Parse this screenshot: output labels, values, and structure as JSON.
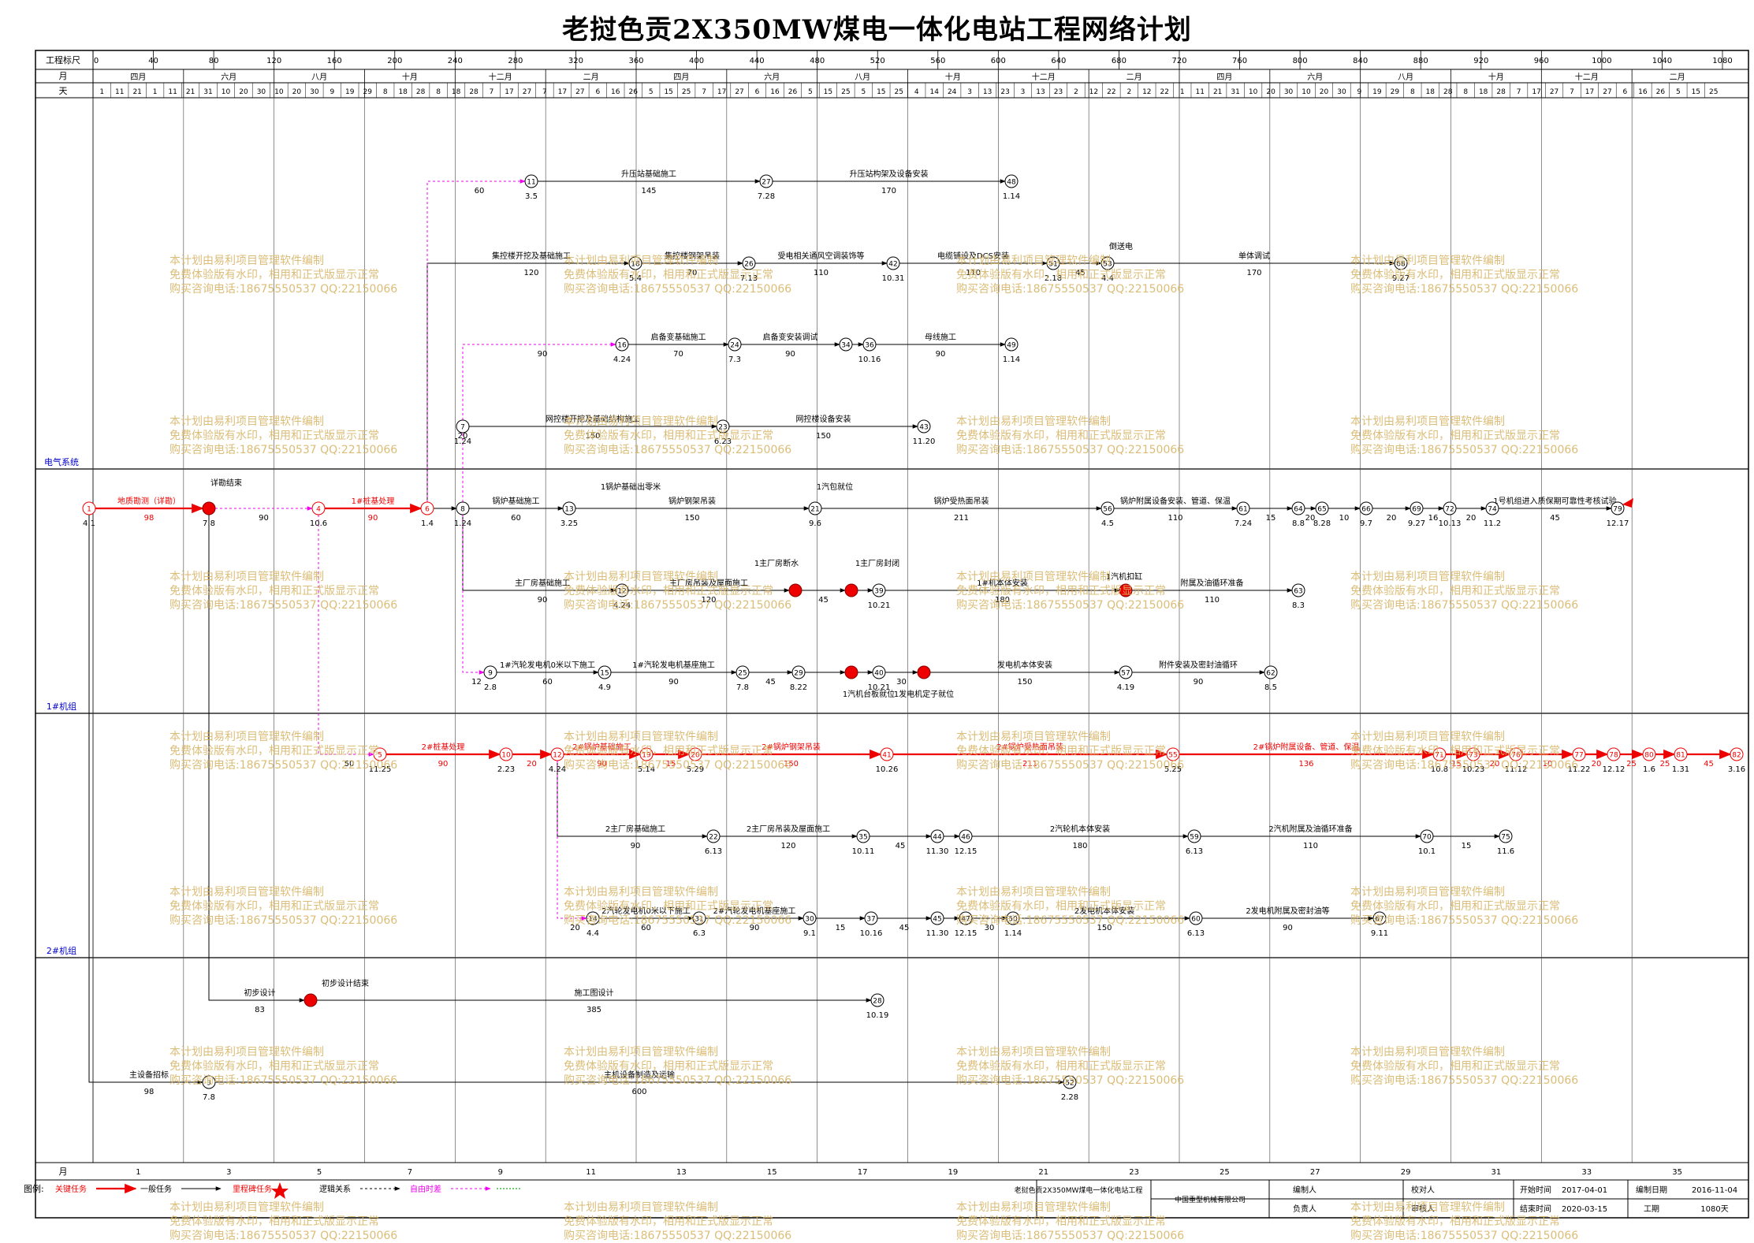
{
  "title": "老挝色贡2X350MW煤电一体化电站工程网络计划",
  "scale": {
    "label_scale": "工程标尺",
    "label_month": "月",
    "label_day": "天",
    "ruler": [
      "0",
      "40",
      "80",
      "120",
      "160",
      "200",
      "240",
      "280",
      "320",
      "360",
      "400",
      "440",
      "480",
      "520",
      "560",
      "600",
      "640",
      "680",
      "720",
      "760",
      "800",
      "840",
      "880",
      "920",
      "960",
      "1000",
      "1040",
      "1080"
    ],
    "months": [
      "四月",
      "六月",
      "八月",
      "十月",
      "十二月",
      "二月",
      "四月",
      "六月",
      "八月",
      "十月",
      "十二月",
      "二月",
      "四月",
      "六月",
      "八月",
      "十月",
      "十二月",
      "二月"
    ]
  },
  "lanes": [
    "电气系统",
    "1#机组",
    "2#机组",
    ""
  ],
  "bottom_months": [
    "月",
    "1",
    "3",
    "5",
    "7",
    "9",
    "11",
    "13",
    "15",
    "17",
    "19",
    "21",
    "23",
    "25",
    "27",
    "29",
    "31",
    "33",
    "35"
  ],
  "watermark": [
    "本计划由易利项目管理软件编制",
    "免费体验版有水印，相用和正式版显示正常",
    "购买咨询电话:18675550537 QQ:22150066"
  ],
  "legend": {
    "label": "图例:",
    "items": [
      "关键任务",
      "一般任务",
      "里程碑任务",
      "逻辑关系",
      "自由时差"
    ]
  },
  "footer": {
    "project": "老挝色贡2X350MW煤电一体化电站工程",
    "company": "中国重型机械有限公司",
    "editor_label": "编制人",
    "checker_label": "校对人",
    "owner_label": "负责人",
    "reviewer_label": "审核人",
    "start_label": "开始时间",
    "start_value": "2017-04-01",
    "end_label": "结束时间",
    "end_value": "2020-03-15",
    "date_label": "编制日期",
    "date_value": "2016-11-04",
    "period_label": "工期",
    "period_value": "1080天"
  },
  "nodes": [
    {
      "id": "1",
      "date": "4.1"
    },
    {
      "id": "2",
      "date": "7.8"
    },
    {
      "id": "4",
      "date": "10.6"
    },
    {
      "id": "6",
      "date": "1.4"
    },
    {
      "id": "8",
      "date": "1.24"
    },
    {
      "id": "13",
      "date": "3.25"
    },
    {
      "id": "21",
      "date": "9.6"
    },
    {
      "id": "56",
      "date": "4.5"
    },
    {
      "id": "61",
      "date": "7.24"
    },
    {
      "id": "64",
      "date": "8.8"
    },
    {
      "id": "65",
      "date": "8.28"
    },
    {
      "id": "66",
      "date": "9.7"
    },
    {
      "id": "69",
      "date": "9.27"
    },
    {
      "id": "72",
      "date": "10.13"
    },
    {
      "id": "74",
      "date": "11.2"
    },
    {
      "id": "79",
      "date": "12.17"
    },
    {
      "id": "11",
      "date": "3.5"
    },
    {
      "id": "27",
      "date": "7.28"
    },
    {
      "id": "48",
      "date": "1.14"
    },
    {
      "id": "18",
      "date": "5.4"
    },
    {
      "id": "26",
      "date": "7.13"
    },
    {
      "id": "42",
      "date": "10.31"
    },
    {
      "id": "51",
      "date": "2.18"
    },
    {
      "id": "53",
      "date": "4.4"
    },
    {
      "id": "68",
      "date": "9.27"
    },
    {
      "id": "16",
      "date": "4.24"
    },
    {
      "id": "24",
      "date": "7.3"
    },
    {
      "id": "36",
      "date": "10.16"
    },
    {
      "id": "49",
      "date": "1.14"
    },
    {
      "id": "7",
      "date": "1.24"
    },
    {
      "id": "23",
      "date": "6.23"
    },
    {
      "id": "43",
      "date": "11.20"
    },
    {
      "id": "12",
      "date": "4.24"
    },
    {
      "id": "39",
      "date": "10.21"
    },
    {
      "id": "63",
      "date": "8.3"
    },
    {
      "id": "9",
      "date": "2.8"
    },
    {
      "id": "15",
      "date": "4.9"
    },
    {
      "id": "25",
      "date": "7.8"
    },
    {
      "id": "29",
      "date": "8.22"
    },
    {
      "id": "40",
      "date": "10.21"
    },
    {
      "id": "57",
      "date": "4.19"
    },
    {
      "id": "62",
      "date": "8.5"
    },
    {
      "id": "5",
      "date": "11.25"
    },
    {
      "id": "10",
      "date": "2.23"
    },
    {
      "id": "19",
      "date": "5.14"
    },
    {
      "id": "20",
      "date": "5.29"
    },
    {
      "id": "41",
      "date": "10.26"
    },
    {
      "id": "55",
      "date": "5.25"
    },
    {
      "id": "71",
      "date": "10.8"
    },
    {
      "id": "73",
      "date": "10.23"
    },
    {
      "id": "76",
      "date": "11.12"
    },
    {
      "id": "77",
      "date": "11.22"
    },
    {
      "id": "78",
      "date": "12.12"
    },
    {
      "id": "80",
      "date": "1.6"
    },
    {
      "id": "81",
      "date": "1.31"
    },
    {
      "id": "82",
      "date": "3.16"
    },
    {
      "id": "22",
      "date": "6.13"
    },
    {
      "id": "35",
      "date": "10.11"
    },
    {
      "id": "44",
      "date": "11.30"
    },
    {
      "id": "46",
      "date": "12.15"
    },
    {
      "id": "59",
      "date": "6.13"
    },
    {
      "id": "70",
      "date": "10.1"
    },
    {
      "id": "75",
      "date": "11.6"
    },
    {
      "id": "14",
      "date": "4.4"
    },
    {
      "id": "31",
      "date": "6.3"
    },
    {
      "id": "30",
      "date": "9.1"
    },
    {
      "id": "37",
      "date": "10.16"
    },
    {
      "id": "45",
      "date": "11.30"
    },
    {
      "id": "47",
      "date": "12.15"
    },
    {
      "id": "50",
      "date": "1.14"
    },
    {
      "id": "60",
      "date": "6.13"
    },
    {
      "id": "67",
      "date": "9.11"
    },
    {
      "id": "3",
      "date": "7.8"
    },
    {
      "id": "28",
      "date": "10.19"
    },
    {
      "id": "52",
      "date": "2.28"
    }
  ],
  "tasks": [
    {
      "name": "地质勘测（详勘）",
      "dur": "98"
    },
    {
      "name": "1#桩基处理",
      "dur": "90"
    },
    {
      "name": "锅炉基础施工",
      "dur": "60"
    },
    {
      "name": "1锅炉基础出零米",
      "dur": ""
    },
    {
      "name": "锅炉钢架吊装",
      "dur": "150"
    },
    {
      "name": "锅炉受热面吊装",
      "dur": "211"
    },
    {
      "name": "锅炉附属设备安装、管道、保温",
      "dur": "110"
    },
    {
      "name": "1号机组进入质保期可靠性考核试验",
      "dur": "45"
    },
    {
      "name": "升压站基础施工",
      "dur": "145"
    },
    {
      "name": "升压站构架及设备安装",
      "dur": "170"
    },
    {
      "name": "集控楼开挖及基础施工",
      "dur": "120"
    },
    {
      "name": "集控楼钢架吊装",
      "dur": "70"
    },
    {
      "name": "受电相关通风空调装饰等",
      "dur": "110"
    },
    {
      "name": "电缆铺设及DCS安装",
      "dur": "110"
    },
    {
      "name": "单体调试",
      "dur": "170"
    },
    {
      "name": "启备变基础施工",
      "dur": "70"
    },
    {
      "name": "启备变安装调试",
      "dur": "90"
    },
    {
      "name": "母线施工",
      "dur": "90"
    },
    {
      "name": "网控楼开挖及基础结构施工",
      "dur": "150"
    },
    {
      "name": "网控楼设备安装",
      "dur": "150"
    },
    {
      "name": "主厂房基础施工",
      "dur": "90"
    },
    {
      "name": "主厂房吊装及屋面施工",
      "dur": "120"
    },
    {
      "name": "1#机本体安装",
      "dur": "180"
    },
    {
      "name": "附属及油循环准备",
      "dur": "110"
    },
    {
      "name": "1#汽轮发电机0米以下施工",
      "dur": "60"
    },
    {
      "name": "1#汽轮发电机基座施工",
      "dur": "90"
    },
    {
      "name": "发电机本体安装",
      "dur": "150"
    },
    {
      "name": "附件安装及密封油循环",
      "dur": "90"
    },
    {
      "name": "2#桩基处理",
      "dur": "90"
    },
    {
      "name": "2#锅炉基础施工",
      "dur": "90"
    },
    {
      "name": "2#锅炉钢架吊装",
      "dur": "150"
    },
    {
      "name": "2#锅炉受热面吊装",
      "dur": "211"
    },
    {
      "name": "2#锅炉附属设备、管道、保温",
      "dur": "136"
    },
    {
      "name": "2主厂房基础施工",
      "dur": "90"
    },
    {
      "name": "2主厂房吊装及屋面施工",
      "dur": "120"
    },
    {
      "name": "2汽轮机本体安装",
      "dur": "180"
    },
    {
      "name": "2汽机附属及油循环准备",
      "dur": "110"
    },
    {
      "name": "2汽轮发电机0米以下施工",
      "dur": "60"
    },
    {
      "name": "2#汽轮发电机基座施工",
      "dur": "90"
    },
    {
      "name": "2发电机本体安装",
      "dur": "150"
    },
    {
      "name": "2发电机附属及密封油等",
      "dur": "90"
    },
    {
      "name": "初步设计",
      "dur": "83"
    },
    {
      "name": "施工图设计",
      "dur": "385"
    },
    {
      "name": "主设备招标",
      "dur": "98"
    },
    {
      "name": "主机设备制造及运输",
      "dur": "600"
    }
  ],
  "milestones": [
    "详勘结束",
    "初步设计结束",
    "1锅炉基础出零米",
    "1汽包就位",
    "1主厂房断水",
    "1主厂房封闭",
    "1汽机扣缸",
    "1发电机定子就位",
    "1汽机台板就位",
    "倒送电"
  ]
}
